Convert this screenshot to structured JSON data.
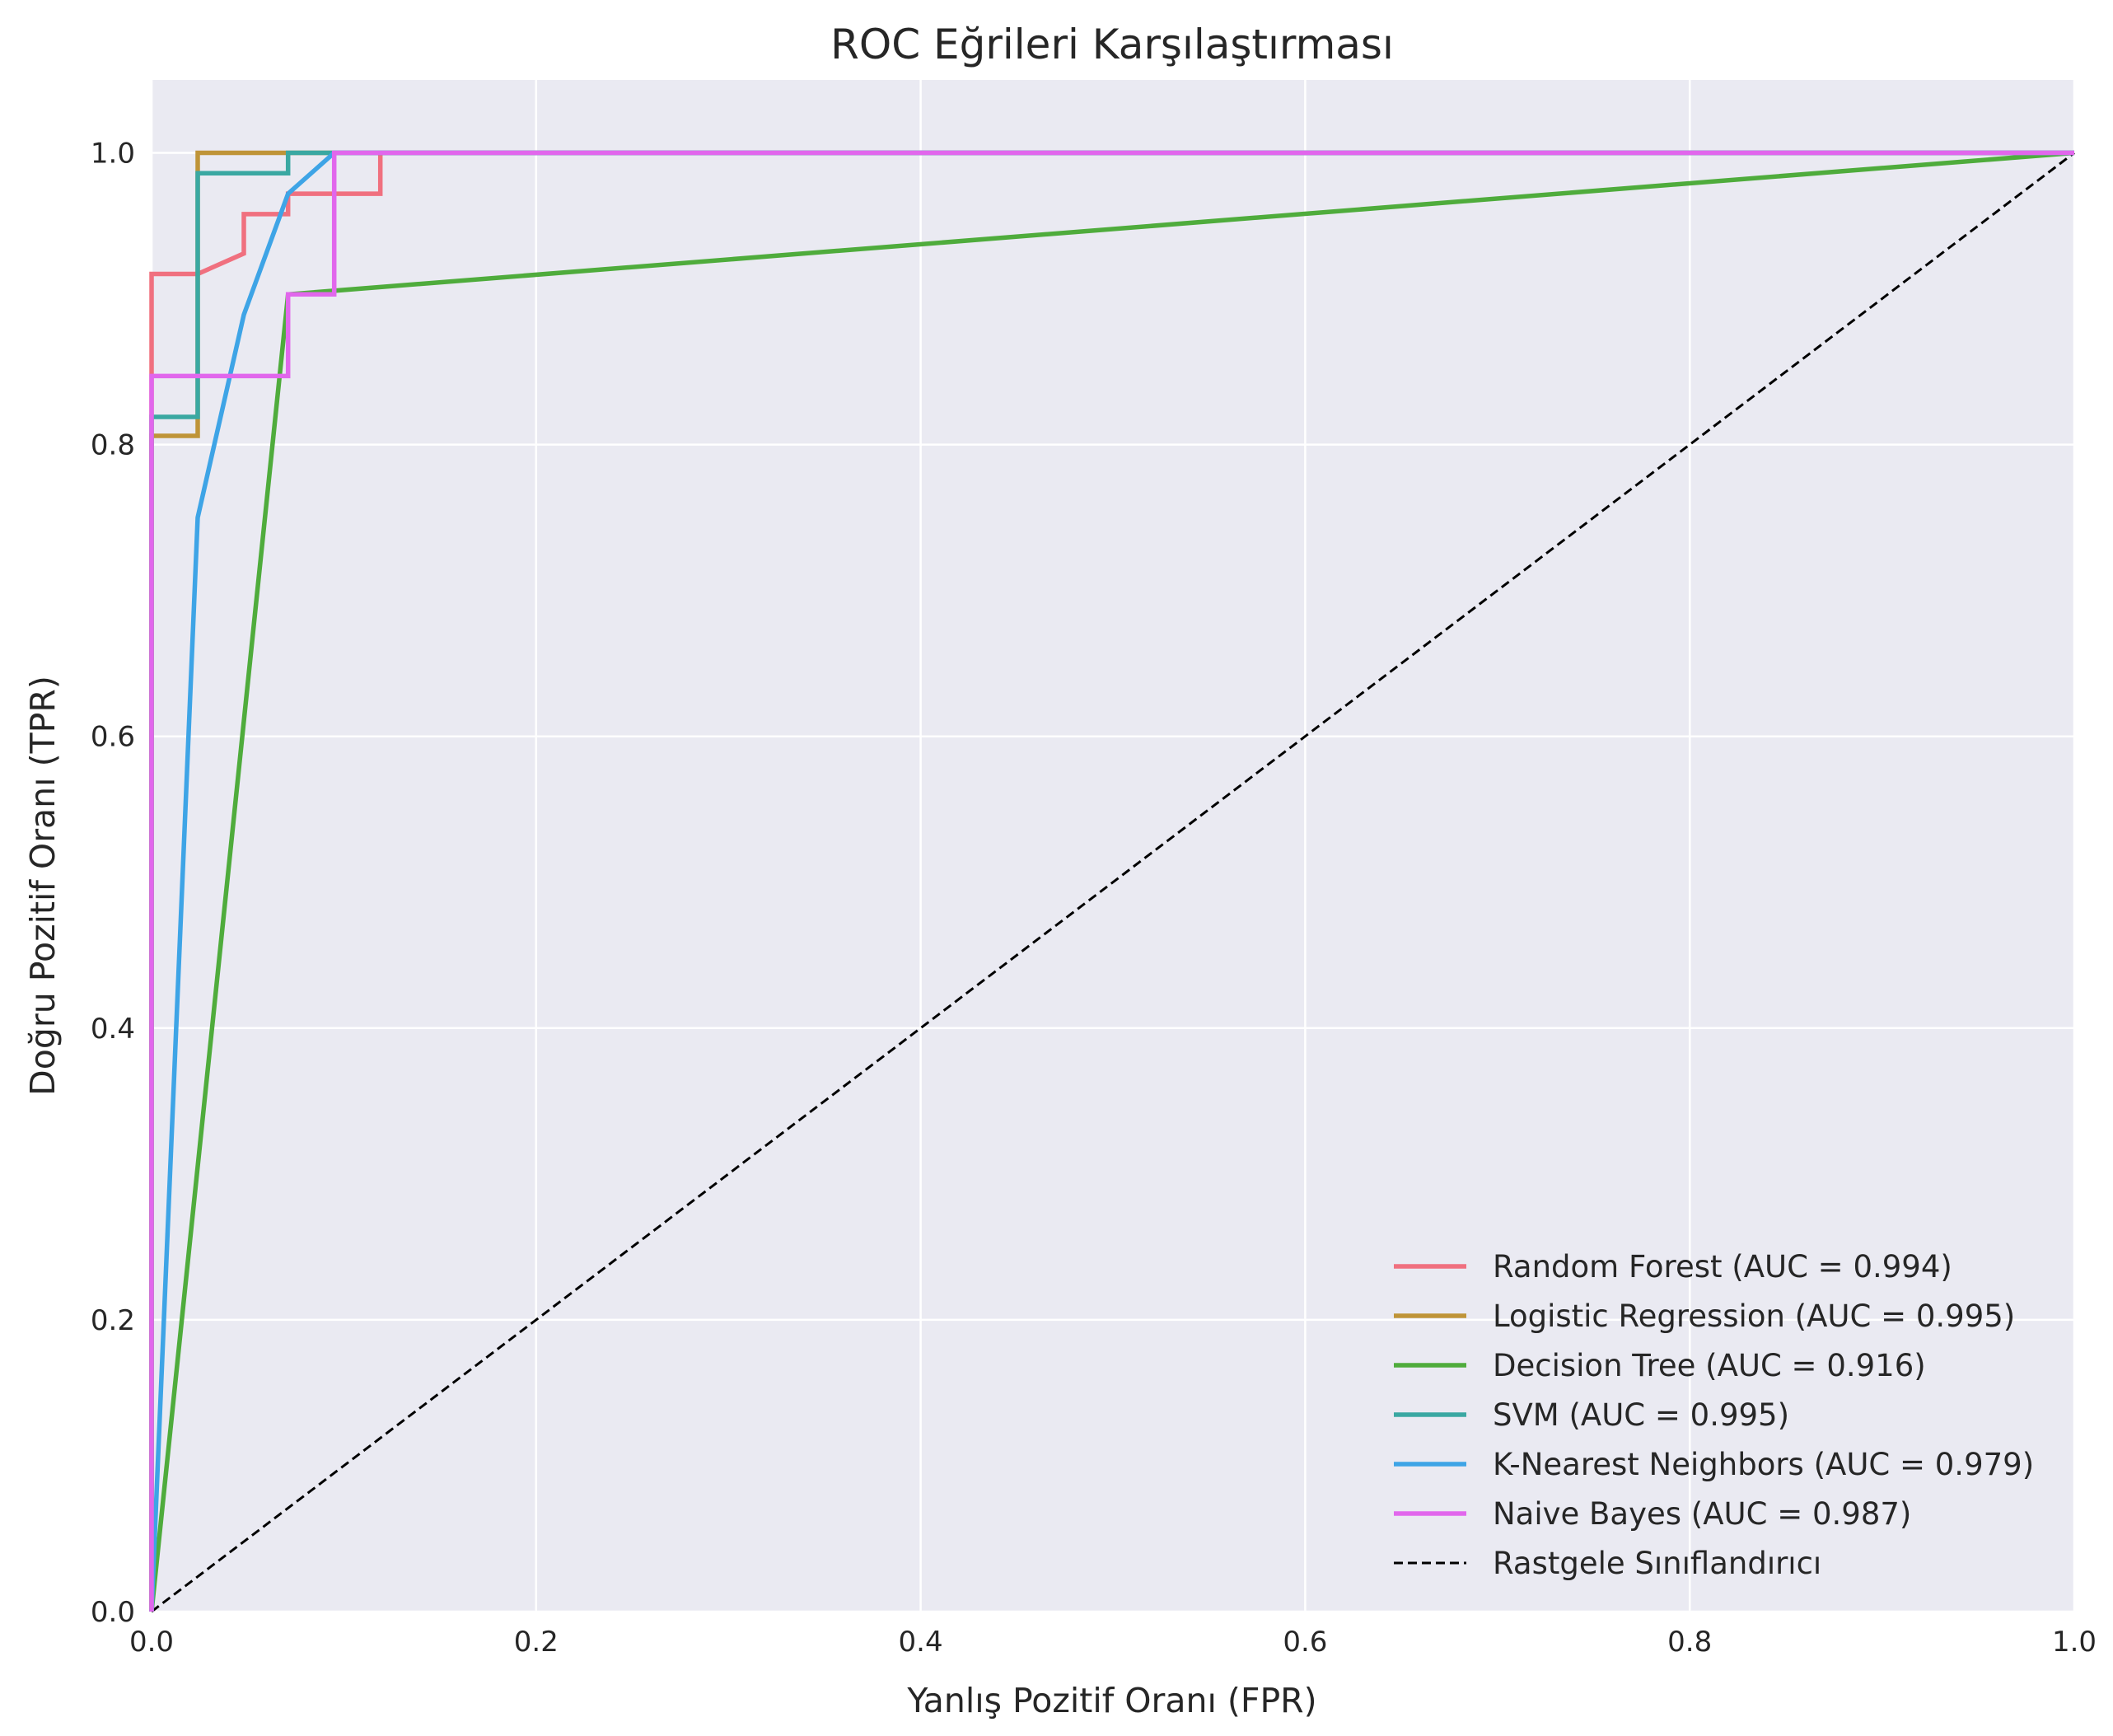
{
  "chart_data": {
    "type": "line",
    "title": "ROC Eğrileri Karşılaştırması",
    "xlabel": "Yanlış Pozitif Oranı (FPR)",
    "ylabel": "Doğru Pozitif Oranı (TPR)",
    "xlim": [
      0.0,
      1.0
    ],
    "ylim": [
      0.0,
      1.05
    ],
    "xticks": [
      "0.0",
      "0.2",
      "0.4",
      "0.6",
      "0.8",
      "1.0"
    ],
    "yticks": [
      "0.0",
      "0.2",
      "0.4",
      "0.6",
      "0.8",
      "1.0"
    ],
    "grid": true,
    "legend_position": "lower right",
    "colors": {
      "background": "#eaeaf2",
      "grid": "#ffffff"
    },
    "series": [
      {
        "name": "Random Forest (AUC = 0.994)",
        "color": "#f0707f",
        "points": [
          [
            0,
            0
          ],
          [
            0,
            0.917
          ],
          [
            0.024,
            0.917
          ],
          [
            0.048,
            0.931
          ],
          [
            0.048,
            0.958
          ],
          [
            0.071,
            0.958
          ],
          [
            0.071,
            0.972
          ],
          [
            0.119,
            0.972
          ],
          [
            0.119,
            1.0
          ],
          [
            1.0,
            1.0
          ]
        ]
      },
      {
        "name": "Logistic Regression (AUC = 0.995)",
        "color": "#bf9438",
        "points": [
          [
            0,
            0
          ],
          [
            0,
            0.806
          ],
          [
            0.024,
            0.806
          ],
          [
            0.024,
            1.0
          ],
          [
            1.0,
            1.0
          ]
        ]
      },
      {
        "name": "Decision Tree (AUC = 0.916)",
        "color": "#4fac3c",
        "points": [
          [
            0,
            0
          ],
          [
            0.071,
            0.903
          ],
          [
            1.0,
            1.0
          ]
        ]
      },
      {
        "name": "SVM (AUC = 0.995)",
        "color": "#3aa8a2",
        "points": [
          [
            0,
            0
          ],
          [
            0,
            0.819
          ],
          [
            0.024,
            0.819
          ],
          [
            0.024,
            0.986
          ],
          [
            0.071,
            0.986
          ],
          [
            0.071,
            1.0
          ],
          [
            1.0,
            1.0
          ]
        ]
      },
      {
        "name": "K-Nearest Neighbors (AUC = 0.979)",
        "color": "#3ea4e6",
        "points": [
          [
            0,
            0
          ],
          [
            0.024,
            0.75
          ],
          [
            0.048,
            0.889
          ],
          [
            0.071,
            0.972
          ],
          [
            0.095,
            1.0
          ],
          [
            1.0,
            1.0
          ]
        ]
      },
      {
        "name": "Naive Bayes (AUC = 0.987)",
        "color": "#e167ec",
        "points": [
          [
            0,
            0
          ],
          [
            0,
            0.847
          ],
          [
            0.071,
            0.847
          ],
          [
            0.071,
            0.903
          ],
          [
            0.095,
            0.903
          ],
          [
            0.095,
            1.0
          ],
          [
            1.0,
            1.0
          ]
        ]
      },
      {
        "name": "Rastgele Sınıflandırıcı",
        "color": "#000000",
        "dashed": true,
        "points": [
          [
            0,
            0
          ],
          [
            1,
            1
          ]
        ]
      }
    ]
  }
}
